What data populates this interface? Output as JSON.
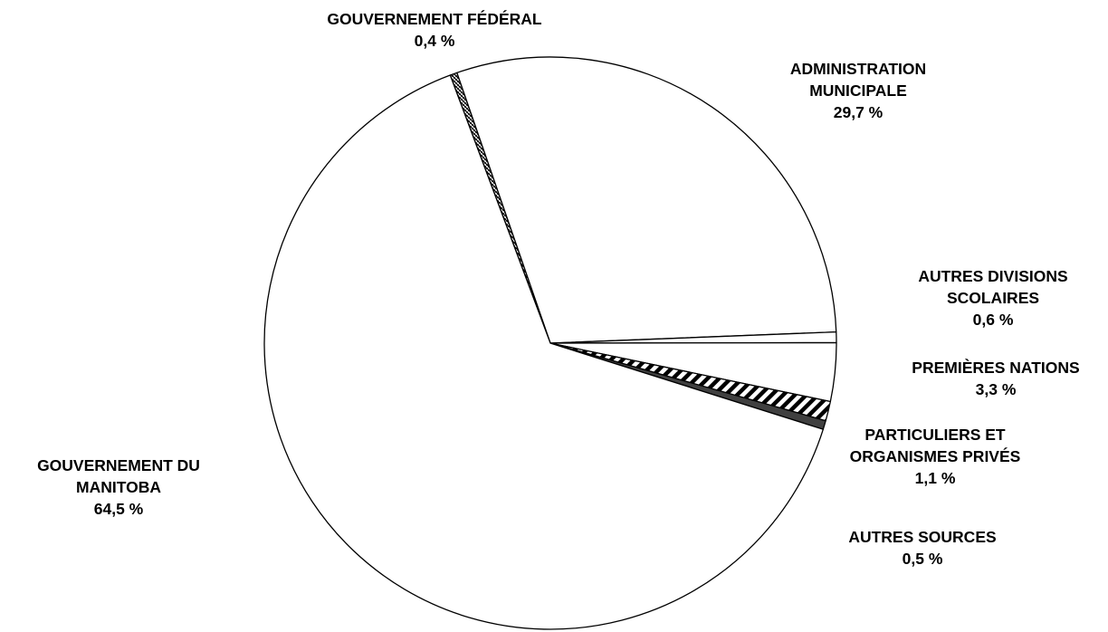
{
  "chart_data": {
    "type": "pie",
    "slices": [
      {
        "label": [
          "GOUVERNEMENT FÉDÉRAL"
        ],
        "value_text": "0,4 %",
        "value": 0.4,
        "fill": "dense"
      },
      {
        "label": [
          "ADMINISTRATION",
          "MUNICIPALE"
        ],
        "value_text": "29,7 %",
        "value": 29.7,
        "fill": "white"
      },
      {
        "label": [
          "AUTRES DIVISIONS",
          "SCOLAIRES"
        ],
        "value_text": "0,6 %",
        "value": 0.6,
        "fill": "white"
      },
      {
        "label": [
          "PREMIÈRES NATIONS"
        ],
        "value_text": "3,3 %",
        "value": 3.3,
        "fill": "white"
      },
      {
        "label": [
          "PARTICULIERS ET",
          "ORGANISMES PRIVÉS"
        ],
        "value_text": "1,1 %",
        "value": 1.1,
        "fill": "diagonal"
      },
      {
        "label": [
          "AUTRES SOURCES"
        ],
        "value_text": "0,5 %",
        "value": 0.5,
        "fill": "dark"
      },
      {
        "label": [
          "GOUVERNEMENT DU",
          "MANITOBA"
        ],
        "value_text": "64,5 %",
        "value": 64.5,
        "fill": "white"
      }
    ],
    "start_angle_deg": -20.5,
    "direction": "clockwise",
    "colors": {
      "outline": "#000000",
      "background": "#ffffff",
      "dark": "#404040"
    }
  }
}
